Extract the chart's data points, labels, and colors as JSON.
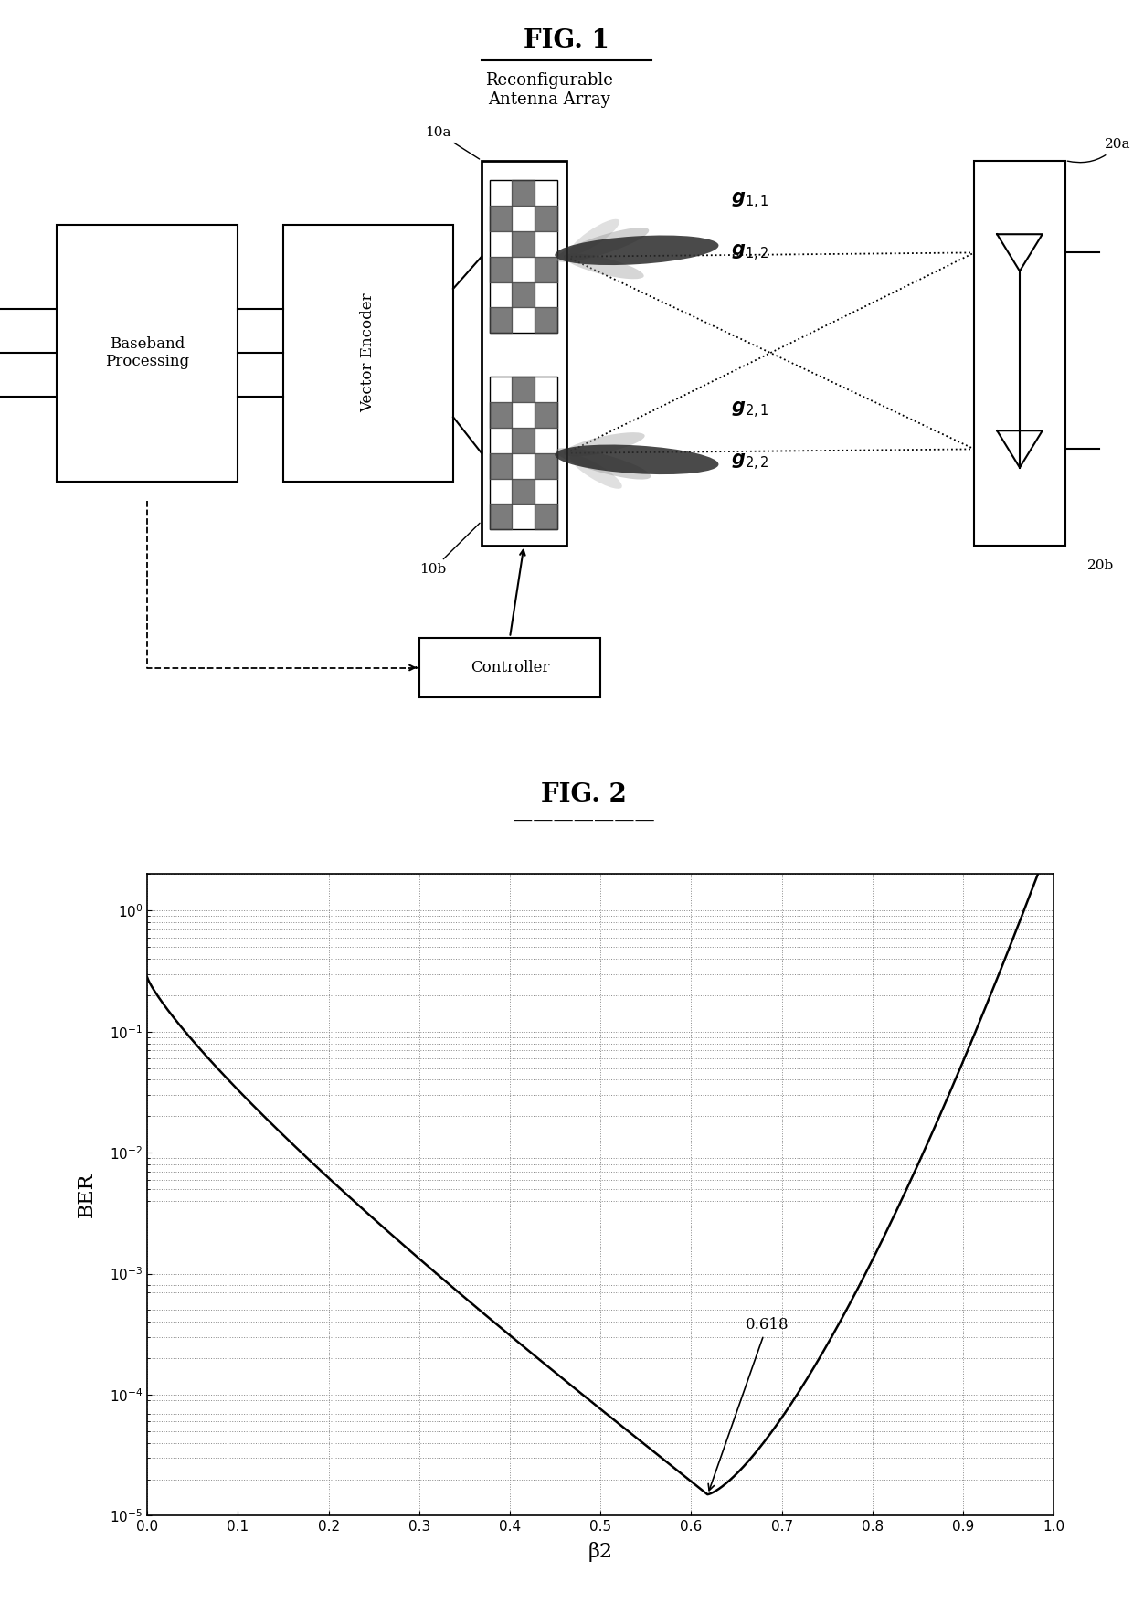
{
  "fig1_title": "FIG. 1",
  "fig2_title": "FIG. 2",
  "fig1_subtitle": "Reconfigurable\nAntenna Array",
  "box_baseband": "Baseband\nProcessing",
  "box_vector": "Vector Encoder",
  "box_controller": "Controller",
  "label_10a": "10a",
  "label_10b": "10b",
  "label_20a": "20a",
  "label_20b": "20b",
  "ber_xlabel": "β2",
  "ber_ylabel": "BER",
  "ber_annotation": "0.618",
  "ber_xlim": [
    0,
    1
  ],
  "ber_xticks": [
    0,
    0.1,
    0.2,
    0.3,
    0.4,
    0.5,
    0.6,
    0.7,
    0.8,
    0.9,
    1
  ],
  "background_color": "#ffffff",
  "line_color": "#000000",
  "min_beta": 0.618
}
